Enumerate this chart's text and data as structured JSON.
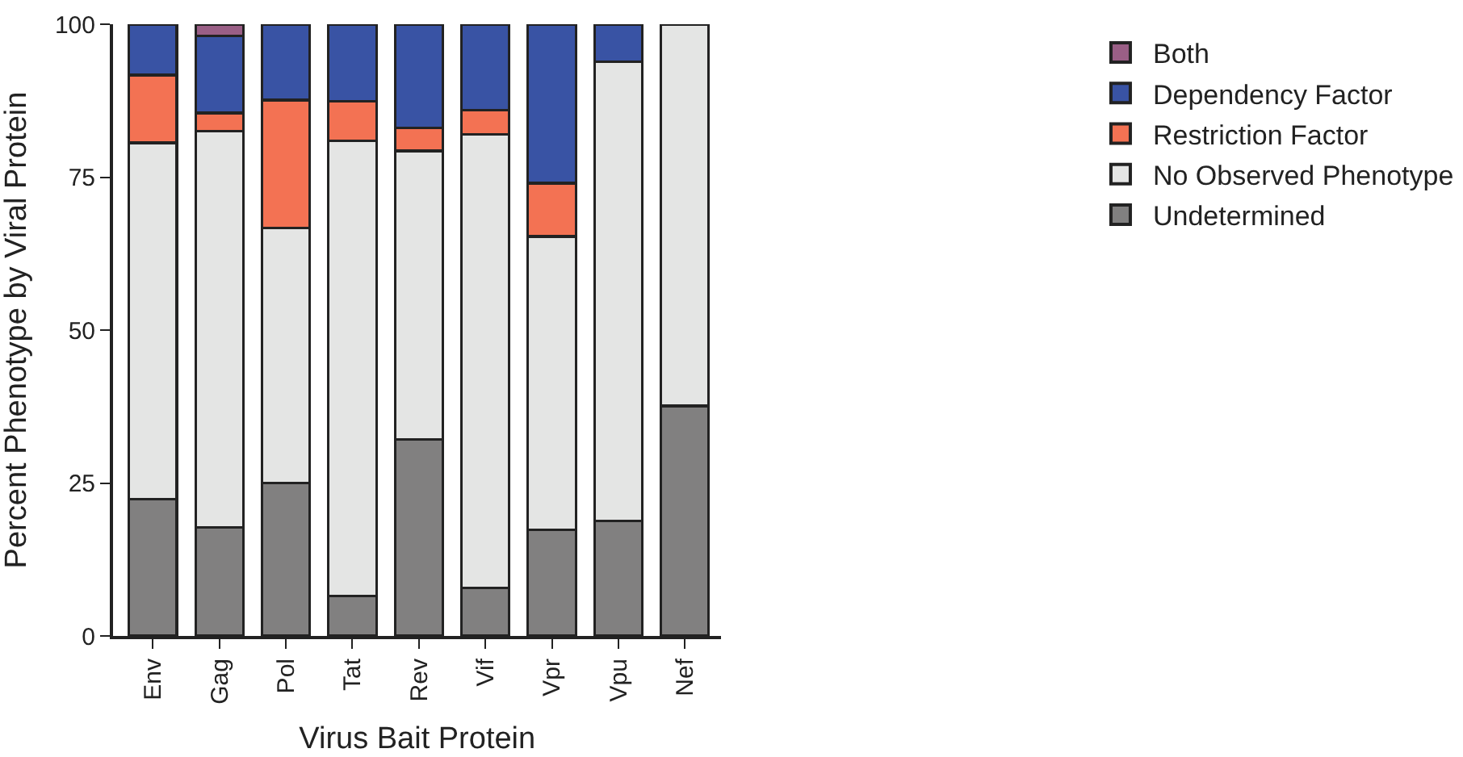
{
  "chart_data": {
    "type": "bar",
    "stacked": true,
    "xlabel": "Virus Bait Protein",
    "ylabel": "Percent Phenotype by Viral Protein",
    "categories": [
      "Env",
      "Gag",
      "Pol",
      "Tat",
      "Rev",
      "Vif",
      "Vpr",
      "Vpu",
      "Nef"
    ],
    "series": [
      {
        "name": "Undetermined",
        "color": "#818080",
        "values": [
          22.4,
          17.7,
          25.0,
          6.5,
          32.1,
          7.9,
          17.4,
          18.8,
          37.6
        ]
      },
      {
        "name": "No Observed Phenotype",
        "color": "#e4e5e4",
        "values": [
          58.2,
          64.8,
          41.7,
          74.4,
          47.2,
          74.1,
          47.9,
          75.1,
          62.4
        ]
      },
      {
        "name": "Restriction Factor",
        "color": "#f37253",
        "values": [
          11.1,
          3.0,
          20.9,
          6.5,
          3.7,
          3.9,
          8.7,
          null,
          null
        ]
      },
      {
        "name": "Dependency Factor",
        "color": "#3953a4",
        "values": [
          8.3,
          12.6,
          12.4,
          12.6,
          17.0,
          14.1,
          26.0,
          6.1,
          null
        ]
      },
      {
        "name": "Both",
        "color": "#9a5f86",
        "values": [
          null,
          1.9,
          null,
          null,
          null,
          null,
          null,
          null,
          null
        ]
      }
    ],
    "ylim": [
      0,
      100
    ],
    "yticks": [
      0,
      25,
      50,
      75,
      100
    ],
    "legend": "top right"
  }
}
